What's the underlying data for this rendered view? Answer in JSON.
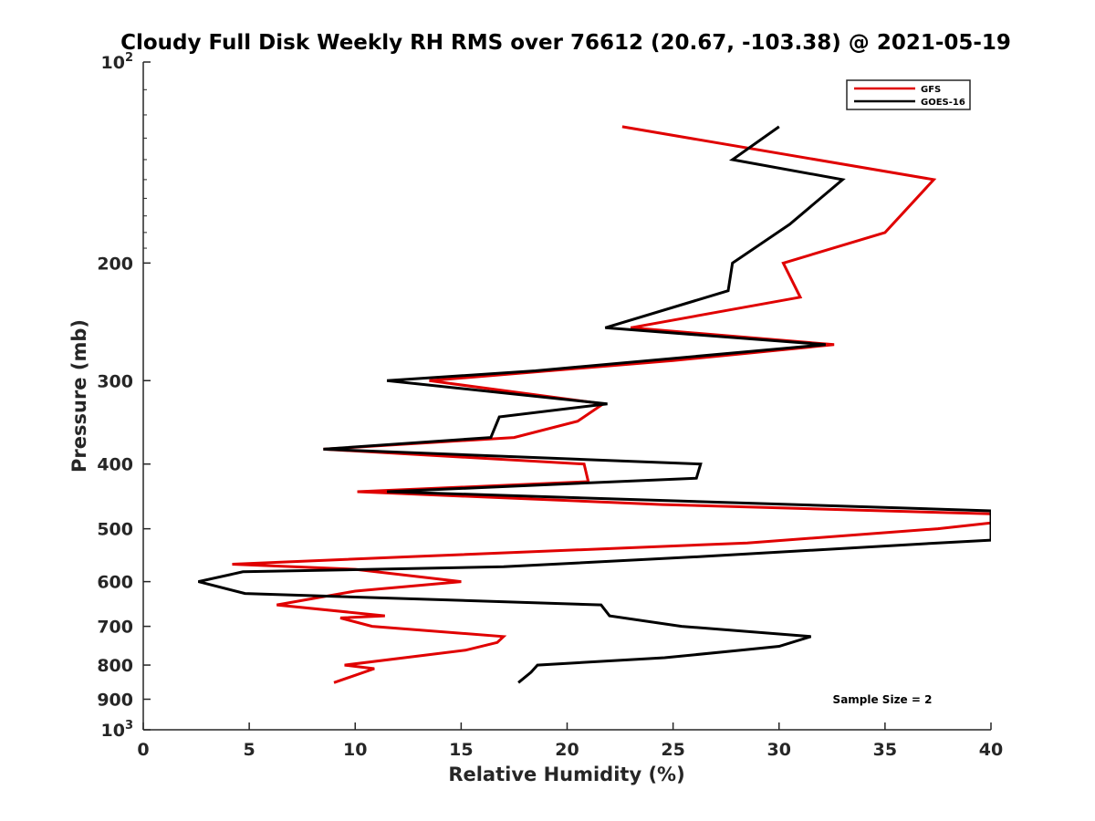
{
  "chart_data": {
    "type": "line",
    "title": "Cloudy Full Disk Weekly RH RMS over 76612 (20.67, -103.38) @ 2021-05-19",
    "xlabel": "Relative Humidity (%)",
    "ylabel": "Pressure (mb)",
    "xlim": [
      0,
      40
    ],
    "ylim": [
      100,
      1000
    ],
    "yscale": "log",
    "y_reversed": true,
    "x_ticks": [
      0,
      5,
      10,
      15,
      20,
      25,
      30,
      35,
      40
    ],
    "x_tick_labels": [
      "0",
      "5",
      "10",
      "15",
      "20",
      "25",
      "30",
      "35",
      "40"
    ],
    "y_ticks": [
      {
        "value": 100,
        "base": "10",
        "exp": "2"
      },
      {
        "value": 200,
        "label": "200"
      },
      {
        "value": 300,
        "label": "300"
      },
      {
        "value": 400,
        "label": "400"
      },
      {
        "value": 500,
        "label": "500"
      },
      {
        "value": 600,
        "label": "600"
      },
      {
        "value": 700,
        "label": "700"
      },
      {
        "value": 800,
        "label": "800"
      },
      {
        "value": 900,
        "label": "900"
      },
      {
        "value": 1000,
        "base": "10",
        "exp": "3"
      }
    ],
    "legend_position": "top-right",
    "annotation": "Sample Size = 2",
    "series": [
      {
        "name": "GFS",
        "color": "#e00000",
        "points": [
          [
            22.6,
            125
          ],
          [
            37.3,
            150
          ],
          [
            35.0,
            180
          ],
          [
            30.2,
            200
          ],
          [
            31.0,
            225
          ],
          [
            23.0,
            250
          ],
          [
            32.6,
            265
          ],
          [
            25.0,
            280
          ],
          [
            13.5,
            300
          ],
          [
            21.7,
            325
          ],
          [
            20.5,
            345
          ],
          [
            17.5,
            365
          ],
          [
            8.5,
            380
          ],
          [
            20.8,
            400
          ],
          [
            21.0,
            425
          ],
          [
            10.1,
            440
          ],
          [
            24.5,
            460
          ],
          [
            40.0,
            475
          ],
          [
            40.0,
            490
          ],
          [
            37.5,
            500
          ],
          [
            28.5,
            525
          ],
          [
            13.0,
            550
          ],
          [
            4.2,
            565
          ],
          [
            10.0,
            575
          ],
          [
            15.0,
            600
          ],
          [
            10.0,
            620
          ],
          [
            6.3,
            650
          ],
          [
            11.4,
            675
          ],
          [
            9.3,
            680
          ],
          [
            10.8,
            700
          ],
          [
            17.0,
            725
          ],
          [
            16.7,
            740
          ],
          [
            15.2,
            760
          ],
          [
            9.5,
            800
          ],
          [
            10.9,
            810
          ],
          [
            9.0,
            850
          ]
        ]
      },
      {
        "name": "GOES-16",
        "color": "#000000",
        "points": [
          [
            30.0,
            125
          ],
          [
            27.8,
            140
          ],
          [
            33.0,
            150
          ],
          [
            30.5,
            175
          ],
          [
            27.8,
            200
          ],
          [
            27.6,
            220
          ],
          [
            21.8,
            250
          ],
          [
            32.2,
            265
          ],
          [
            18.5,
            290
          ],
          [
            11.5,
            300
          ],
          [
            21.9,
            325
          ],
          [
            16.8,
            340
          ],
          [
            16.4,
            365
          ],
          [
            8.5,
            380
          ],
          [
            26.3,
            400
          ],
          [
            26.1,
            420
          ],
          [
            11.5,
            440
          ],
          [
            40.0,
            470
          ],
          [
            40.0,
            520
          ],
          [
            37.5,
            525
          ],
          [
            26.5,
            550
          ],
          [
            17.0,
            570
          ],
          [
            4.7,
            580
          ],
          [
            2.6,
            600
          ],
          [
            4.8,
            625
          ],
          [
            21.6,
            650
          ],
          [
            22.0,
            675
          ],
          [
            25.4,
            700
          ],
          [
            31.5,
            725
          ],
          [
            30.0,
            750
          ],
          [
            28.2,
            760
          ],
          [
            24.6,
            780
          ],
          [
            18.6,
            800
          ],
          [
            18.3,
            820
          ],
          [
            17.7,
            850
          ]
        ]
      }
    ]
  }
}
